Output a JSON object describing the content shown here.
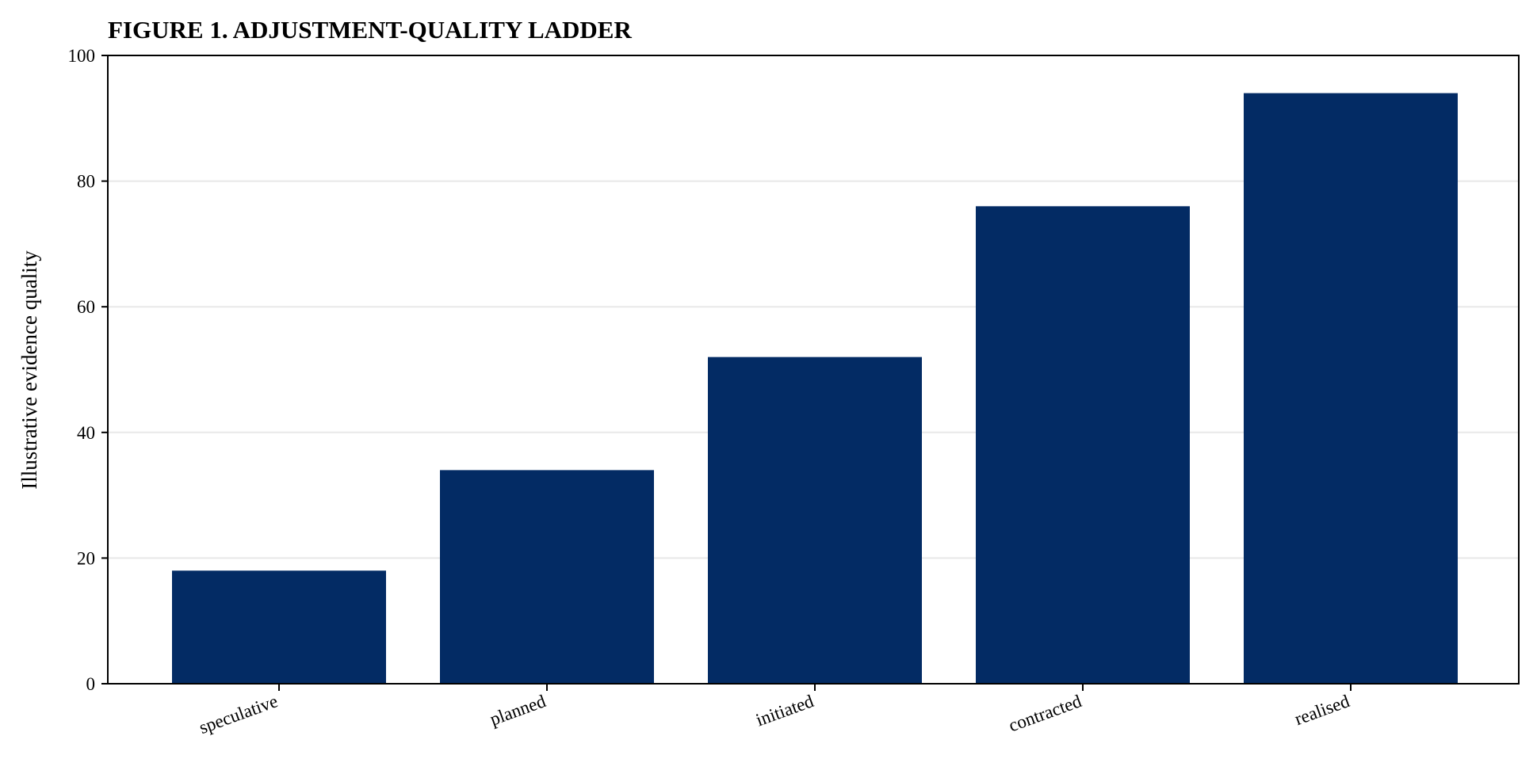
{
  "chart_data": {
    "type": "bar",
    "title": "FIGURE 1. ADJUSTMENT-QUALITY LADDER",
    "xlabel": "",
    "ylabel": "Illustrative evidence quality",
    "categories": [
      "speculative",
      "planned",
      "initiated",
      "contracted",
      "realised"
    ],
    "values": [
      18,
      34,
      52,
      76,
      94
    ],
    "ylim": [
      0,
      100
    ],
    "yticks": [
      0,
      20,
      40,
      60,
      80,
      100
    ],
    "grid": "horizontal",
    "bar_color": "#032b64",
    "xtick_rotation": 20
  }
}
